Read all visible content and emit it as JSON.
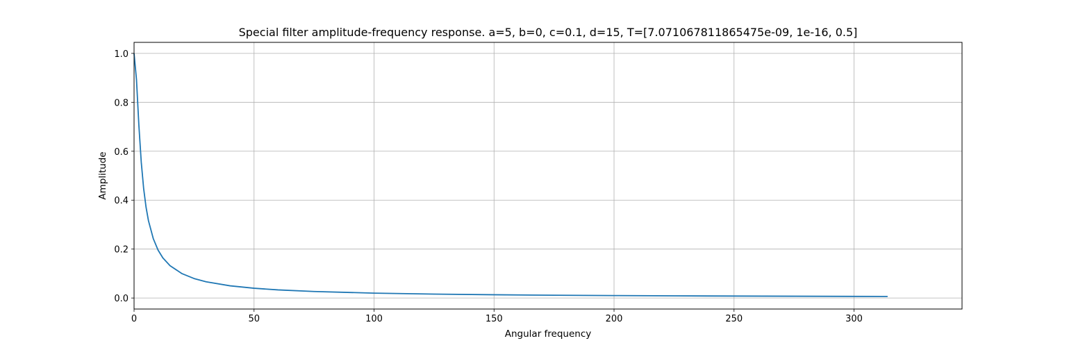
{
  "chart_data": {
    "type": "line",
    "title": "Special filter amplitude-frequency response. a=5, b=0, c=0.1, d=15, T=[7.071067811865475e-09, 1e-16, 0.5]",
    "xlabel": "Angular frequency",
    "ylabel": "Amplitude",
    "xlim": [
      0,
      345
    ],
    "ylim": [
      -0.045,
      1.045
    ],
    "xticks": [
      0,
      50,
      100,
      150,
      200,
      250,
      300
    ],
    "xtick_labels": [
      "0",
      "50",
      "100",
      "150",
      "200",
      "250",
      "300"
    ],
    "yticks": [
      0.0,
      0.2,
      0.4,
      0.6,
      0.8,
      1.0
    ],
    "ytick_labels": [
      "0.0",
      "0.2",
      "0.4",
      "0.6",
      "0.8",
      "1.0"
    ],
    "grid": true,
    "series": [
      {
        "color": "#1f77b4",
        "x": [
          0,
          1,
          2,
          3,
          4,
          5,
          6,
          8,
          10,
          12,
          15,
          20,
          25,
          30,
          40,
          50,
          60,
          75,
          100,
          125,
          150,
          175,
          200,
          225,
          250,
          275,
          300,
          314
        ],
        "y": [
          1.0,
          0.894,
          0.707,
          0.555,
          0.447,
          0.371,
          0.316,
          0.243,
          0.196,
          0.164,
          0.132,
          0.0995,
          0.0797,
          0.0665,
          0.0499,
          0.04,
          0.0333,
          0.0267,
          0.02,
          0.016,
          0.0133,
          0.0114,
          0.01,
          0.0089,
          0.008,
          0.0073,
          0.0067,
          0.0064
        ]
      }
    ]
  }
}
